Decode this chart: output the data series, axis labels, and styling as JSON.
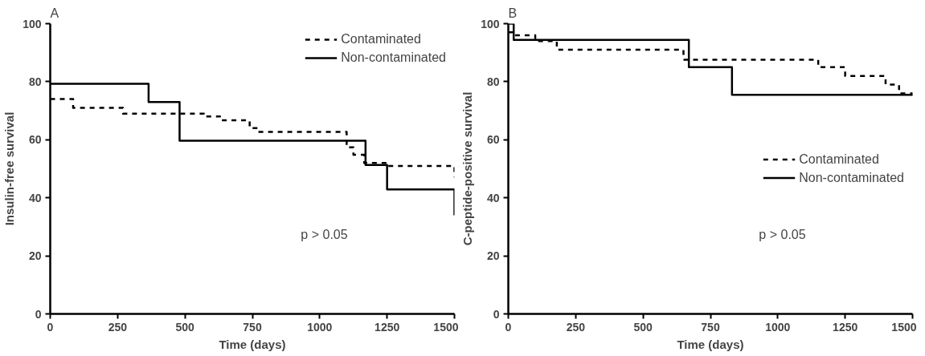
{
  "chart_data": [
    {
      "type": "step",
      "title": "A",
      "xlabel": "Time (days)",
      "ylabel": "Insulin-free survival",
      "xlim": [
        0,
        1500
      ],
      "ylim": [
        0,
        100
      ],
      "xticks": [
        0,
        250,
        500,
        750,
        1000,
        1250,
        1500
      ],
      "yticks": [
        0,
        20,
        40,
        60,
        80,
        100
      ],
      "grid": false,
      "legend": "top right",
      "annotations": [
        "p > 0.05"
      ],
      "series": [
        {
          "name": "Contaminated",
          "color": "#000000",
          "line_style": "dashed",
          "x": [
            0,
            85,
            270,
            570,
            630,
            740,
            770,
            1100,
            1125,
            1165,
            1250,
            1500
          ],
          "values": [
            74,
            71,
            69,
            68,
            66.7,
            64,
            62.7,
            57.4,
            54.8,
            52,
            51,
            47
          ]
        },
        {
          "name": "Non-contaminated",
          "color": "#000000",
          "line_style": "solid",
          "x": [
            0,
            365,
            480,
            1170,
            1250,
            1500
          ],
          "values": [
            79.3,
            73,
            59.7,
            51.3,
            42.9,
            34
          ]
        }
      ]
    },
    {
      "type": "step",
      "title": "B",
      "xlabel": "Time (days)",
      "ylabel": "C-peptide-positive survival",
      "xlim": [
        0,
        1500
      ],
      "ylim": [
        0,
        100
      ],
      "xticks": [
        0,
        250,
        500,
        750,
        1000,
        1250,
        1500
      ],
      "yticks": [
        0,
        20,
        40,
        60,
        80,
        100
      ],
      "grid": false,
      "legend": "right",
      "annotations": [
        "p > 0.05"
      ],
      "series": [
        {
          "name": "Contaminated",
          "color": "#000000",
          "line_style": "dashed",
          "x": [
            0,
            15,
            100,
            180,
            650,
            1150,
            1250,
            1400,
            1450,
            1500
          ],
          "values": [
            97,
            96,
            94,
            91,
            87.6,
            85,
            82,
            79,
            76,
            75
          ]
        },
        {
          "name": "Non-contaminated",
          "color": "#000000",
          "line_style": "solid",
          "x": [
            0,
            20,
            670,
            830,
            1500
          ],
          "values": [
            100,
            94.4,
            85,
            75.5,
            75.5
          ]
        }
      ]
    }
  ]
}
